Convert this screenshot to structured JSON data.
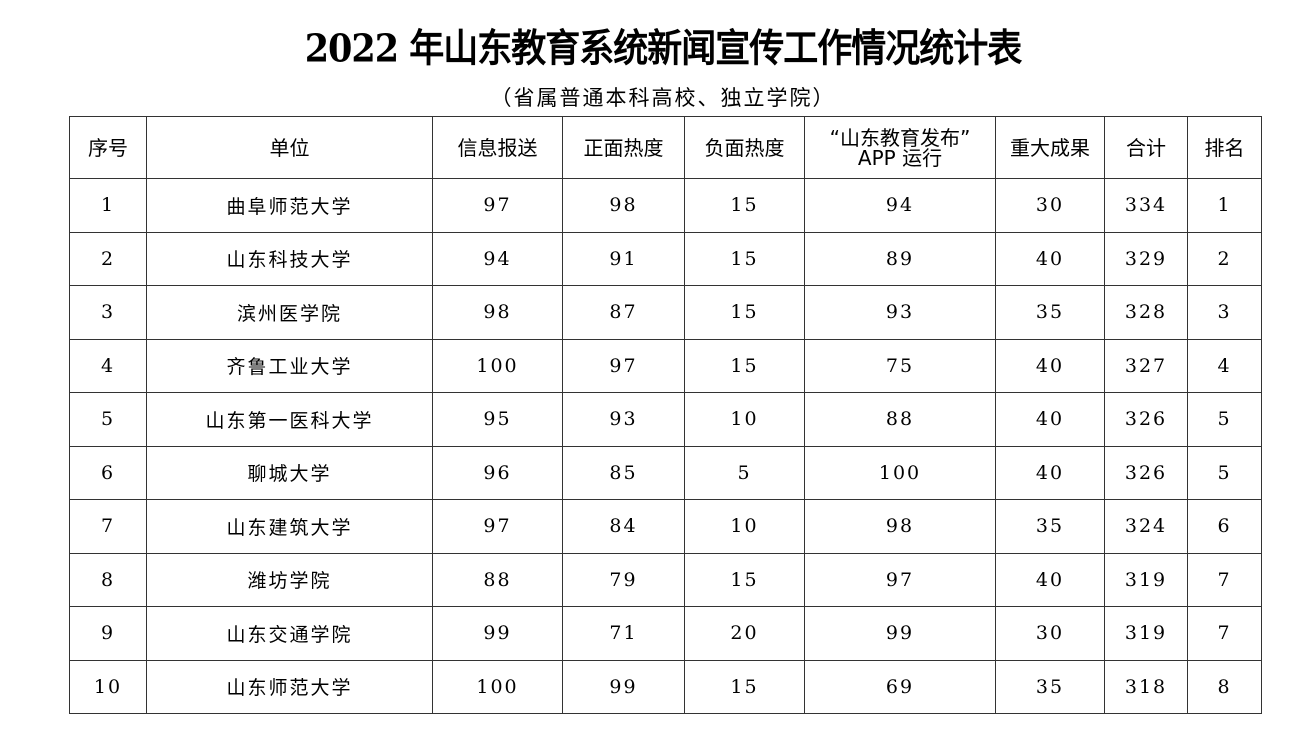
{
  "title": "2022 年山东教育系统新闻宣传工作情况统计表",
  "subtitle": "（省属普通本科高校、独立学院）",
  "columns": [
    "序号",
    "单位",
    "信息报送",
    "正面热度",
    "负面热度",
    "“山东教育发布”\nAPP 运行",
    "重大成果",
    "合计",
    "排名"
  ],
  "rows": [
    [
      "1",
      "曲阜师范大学",
      "97",
      "98",
      "15",
      "94",
      "30",
      "334",
      "1"
    ],
    [
      "2",
      "山东科技大学",
      "94",
      "91",
      "15",
      "89",
      "40",
      "329",
      "2"
    ],
    [
      "3",
      "滨州医学院",
      "98",
      "87",
      "15",
      "93",
      "35",
      "328",
      "3"
    ],
    [
      "4",
      "齐鲁工业大学",
      "100",
      "97",
      "15",
      "75",
      "40",
      "327",
      "4"
    ],
    [
      "5",
      "山东第一医科大学",
      "95",
      "93",
      "10",
      "88",
      "40",
      "326",
      "5"
    ],
    [
      "6",
      "聊城大学",
      "96",
      "85",
      "5",
      "100",
      "40",
      "326",
      "5"
    ],
    [
      "7",
      "山东建筑大学",
      "97",
      "84",
      "10",
      "98",
      "35",
      "324",
      "6"
    ],
    [
      "8",
      "潍坊学院",
      "88",
      "79",
      "15",
      "97",
      "40",
      "319",
      "7"
    ],
    [
      "9",
      "山东交通学院",
      "99",
      "71",
      "20",
      "99",
      "30",
      "319",
      "7"
    ],
    [
      "10",
      "山东师范大学",
      "100",
      "99",
      "15",
      "69",
      "35",
      "318",
      "8"
    ]
  ]
}
